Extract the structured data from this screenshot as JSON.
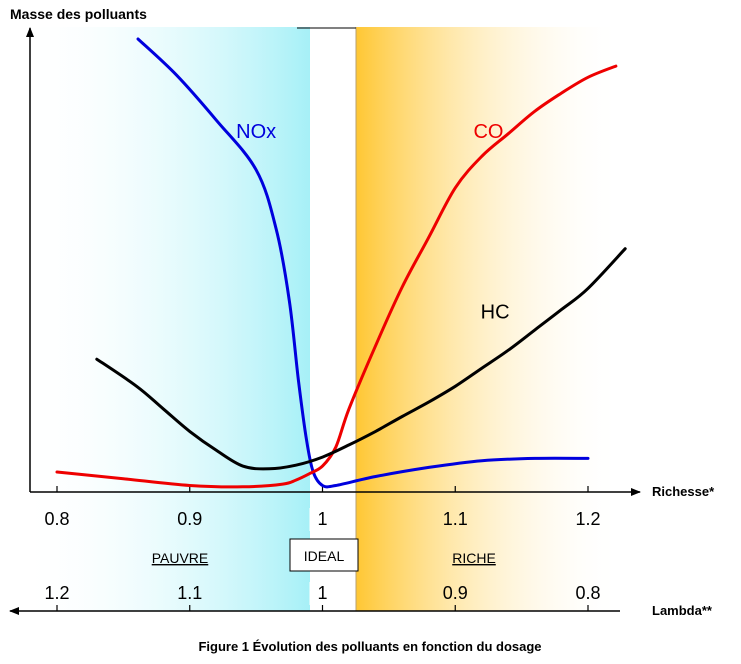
{
  "chart_data": {
    "type": "line",
    "title": "Figure 1 Évolution des polluants en fonction du dosage",
    "ylabel": "Masse des polluants",
    "xlabel": "Richesse*",
    "x2label": "Lambda**",
    "xlim": [
      0.8,
      1.22
    ],
    "ylim": [
      0,
      100
    ],
    "x_ticks": [
      "0.8",
      "0.9",
      "1",
      "1.1",
      "1.2"
    ],
    "x_tick_values": [
      0.8,
      0.9,
      1.0,
      1.1,
      1.2
    ],
    "lambda_ticks": [
      "1.2",
      "1.1",
      "1",
      "0.9",
      "0.8"
    ],
    "lambda_tick_values": [
      0.8,
      0.9,
      1.0,
      1.1,
      1.2
    ],
    "zones": {
      "lean": "PAUVRE",
      "ideal": "IDEAL",
      "rich": "RICHE",
      "lean_color": "#a6f0f7",
      "rich_color": "#ffc733"
    },
    "series": [
      {
        "name": "NOx",
        "color": "#0000dd",
        "label_at": [
          0.95,
          78
        ],
        "x": [
          0.861,
          0.89,
          0.92,
          0.95,
          0.965,
          0.975,
          0.982,
          0.988,
          0.993,
          1.0,
          1.01,
          1.04,
          1.08,
          1.12,
          1.16,
          1.2
        ],
        "y": [
          100,
          92,
          82,
          71,
          58,
          42,
          24,
          11,
          4,
          1,
          1,
          3,
          5,
          6.5,
          7,
          7
        ]
      },
      {
        "name": "CO",
        "color": "#ee0000",
        "label_at": [
          1.125,
          78
        ],
        "x": [
          0.8,
          0.85,
          0.9,
          0.94,
          0.97,
          0.98,
          0.99,
          1.0,
          1.01,
          1.02,
          1.04,
          1.06,
          1.08,
          1.1,
          1.12,
          1.14,
          1.16,
          1.18,
          1.2,
          1.221
        ],
        "y": [
          4,
          2.5,
          1,
          0.7,
          1.3,
          2.2,
          3.6,
          5.3,
          9.5,
          18,
          32,
          45,
          56,
          67,
          74,
          79,
          84,
          88,
          91.5,
          94
        ]
      },
      {
        "name": "HC",
        "color": "#000000",
        "label_at": [
          1.13,
          38
        ],
        "x": [
          0.83,
          0.86,
          0.88,
          0.9,
          0.92,
          0.94,
          0.96,
          0.98,
          1.0,
          1.02,
          1.04,
          1.06,
          1.08,
          1.1,
          1.12,
          1.14,
          1.16,
          1.18,
          1.2,
          1.228
        ],
        "y": [
          29,
          23,
          18,
          13,
          8.8,
          5.3,
          4.7,
          5.5,
          7.3,
          10,
          13,
          16.3,
          19.5,
          23,
          27,
          31,
          35.5,
          40,
          44.7,
          53.5
        ]
      }
    ]
  }
}
